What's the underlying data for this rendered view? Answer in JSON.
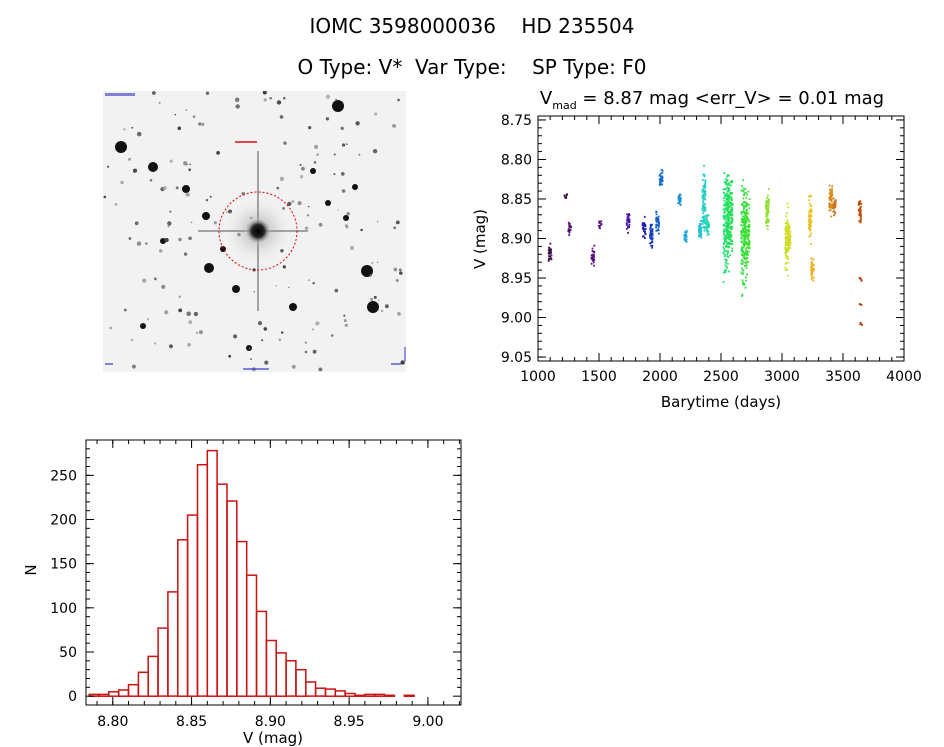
{
  "header": {
    "line1": "IOMC 3598000036    HD 235504",
    "line2": "O Type: V*  Var Type:    SP Type: F0"
  },
  "image_panel": {
    "kind": "DSS finding chart",
    "colors": {
      "circle": "#dd0000",
      "label_red": "#dd0000",
      "label_blue": "#0000cc"
    }
  },
  "chart_data": [
    {
      "type": "scatter",
      "title_parts": {
        "sym": "V",
        "sub": "mad",
        "rest": " = 8.87 mag <err_V> = 0.01 mag"
      },
      "xlabel": "Barytime (days)",
      "ylabel": "V (mag)",
      "xlim": [
        1000,
        4000
      ],
      "ylim": [
        9.055,
        8.745
      ],
      "y_inverted": true,
      "xticks": [
        1000,
        1500,
        2000,
        2500,
        3000,
        3500,
        4000
      ],
      "yticks": [
        "8.75",
        "8.80",
        "8.85",
        "8.90",
        "8.95",
        "9.00",
        "9.05"
      ],
      "color_scale": "rainbow (purple → red with time)",
      "groups": [
        {
          "x": 1100,
          "ymin": 8.905,
          "ymax": 8.935,
          "color": "#3a0a4a"
        },
        {
          "x": 1230,
          "ymin": 8.842,
          "ymax": 8.852,
          "color": "#3a0a4a"
        },
        {
          "x": 1260,
          "ymin": 8.878,
          "ymax": 8.898,
          "color": "#4b0d6b"
        },
        {
          "x": 1450,
          "ymin": 8.905,
          "ymax": 8.94,
          "color": "#5a1180"
        },
        {
          "x": 1510,
          "ymin": 8.876,
          "ymax": 8.89,
          "color": "#5a1180"
        },
        {
          "x": 1740,
          "ymin": 8.862,
          "ymax": 8.895,
          "color": "#4a14a0"
        },
        {
          "x": 1870,
          "ymin": 8.87,
          "ymax": 8.903,
          "color": "#2a20b0"
        },
        {
          "x": 1930,
          "ymin": 8.87,
          "ymax": 8.92,
          "color": "#1a40c0"
        },
        {
          "x": 1980,
          "ymin": 8.86,
          "ymax": 8.9,
          "color": "#1060c8"
        },
        {
          "x": 2010,
          "ymin": 8.808,
          "ymax": 8.84,
          "color": "#1070cc"
        },
        {
          "x": 2160,
          "ymin": 8.84,
          "ymax": 8.862,
          "color": "#1a90d0"
        },
        {
          "x": 2210,
          "ymin": 8.886,
          "ymax": 8.908,
          "color": "#20a8d8"
        },
        {
          "x": 2330,
          "ymin": 8.872,
          "ymax": 8.91,
          "color": "#20c0d0"
        },
        {
          "x": 2360,
          "ymin": 8.798,
          "ymax": 8.905,
          "color": "#20d0c8"
        },
        {
          "x": 2390,
          "ymin": 8.86,
          "ymax": 8.9,
          "color": "#20d8b0"
        },
        {
          "x": 2545,
          "ymin": 8.785,
          "ymax": 8.97,
          "color": "#20e070"
        },
        {
          "x": 2570,
          "ymin": 8.8,
          "ymax": 8.945,
          "color": "#20e050"
        },
        {
          "x": 2690,
          "ymin": 8.81,
          "ymax": 8.988,
          "color": "#30e040"
        },
        {
          "x": 2710,
          "ymin": 8.82,
          "ymax": 8.96,
          "color": "#40e030"
        },
        {
          "x": 2880,
          "ymin": 8.832,
          "ymax": 8.9,
          "color": "#90e030"
        },
        {
          "x": 3040,
          "ymin": 8.85,
          "ymax": 8.958,
          "color": "#c8e020"
        },
        {
          "x": 3060,
          "ymin": 8.88,
          "ymax": 8.92,
          "color": "#d8d820"
        },
        {
          "x": 3230,
          "ymin": 8.838,
          "ymax": 8.91,
          "color": "#e8c020"
        },
        {
          "x": 3250,
          "ymin": 8.92,
          "ymax": 8.958,
          "color": "#e8b020"
        },
        {
          "x": 3400,
          "ymin": 8.82,
          "ymax": 8.882,
          "color": "#d88818"
        },
        {
          "x": 3430,
          "ymin": 8.84,
          "ymax": 8.875,
          "color": "#c87818"
        },
        {
          "x": 3640,
          "ymin": 8.845,
          "ymax": 8.89,
          "color": "#c05010"
        },
        {
          "x": 3645,
          "ymin": 8.948,
          "ymax": 8.955,
          "color": "#b84010"
        },
        {
          "x": 3648,
          "ymin": 8.982,
          "ymax": 8.986,
          "color": "#b84010"
        },
        {
          "x": 3650,
          "ymin": 9.006,
          "ymax": 9.01,
          "color": "#b84010"
        }
      ]
    },
    {
      "type": "bar",
      "subtype": "histogram",
      "xlabel": "V (mag)",
      "ylabel": "N",
      "xlim": [
        8.783,
        9.021
      ],
      "ylim": [
        -10,
        290
      ],
      "xticks": [
        "8.80",
        "8.85",
        "8.90",
        "8.95",
        "9.00"
      ],
      "yticks": [
        "0",
        "50",
        "100",
        "150",
        "200",
        "250"
      ],
      "bar_color": "#cc1111",
      "bin_width": 0.00625,
      "bin_start": 8.785,
      "counts": [
        2,
        2,
        5,
        7,
        13,
        27,
        45,
        77,
        118,
        177,
        205,
        262,
        278,
        240,
        221,
        175,
        137,
        96,
        63,
        49,
        40,
        30,
        16,
        9,
        8,
        6,
        3,
        1,
        2,
        2,
        1,
        0,
        1,
        0,
        0
      ]
    }
  ]
}
